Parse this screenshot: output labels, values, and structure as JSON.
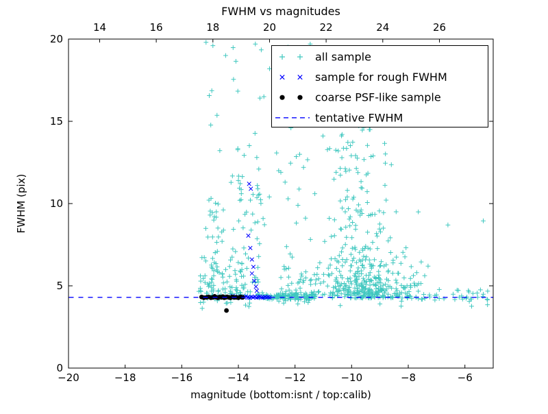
{
  "chart_data": {
    "type": "scatter",
    "title": "FWHM vs magnitudes",
    "xlabel": "magnitude (bottom:isnt / top:calib)",
    "ylabel": "FWHM (pix)",
    "xlim": [
      -20,
      -5
    ],
    "ylim": [
      0,
      20
    ],
    "grid": false,
    "x_ticks_bottom": [
      -20,
      -18,
      -16,
      -14,
      -12,
      -10,
      -8,
      -6
    ],
    "y_ticks": [
      0,
      5,
      10,
      15,
      20
    ],
    "top_axis": {
      "offset": 32.9,
      "ticks": [
        14,
        16,
        18,
        20,
        22,
        24,
        26
      ]
    },
    "tentative_fwhm": 4.3,
    "legend_position": "upper right",
    "colors": {
      "all_sample": "#3fc7bf",
      "rough_sample": "#0000ff",
      "psf_sample": "#000000",
      "tentative_line": "#0000ff",
      "frame": "#000000"
    },
    "series": [
      {
        "name": "all sample",
        "marker": "plus",
        "color": "#3fc7bf",
        "seed": 1337,
        "points": [
          [
            -15.0,
            9.3
          ],
          [
            -14.92,
            9.45
          ],
          [
            -14.85,
            9.2
          ],
          [
            -14.78,
            9.5
          ],
          [
            -14.0,
            11.4
          ],
          [
            -13.9,
            10.85
          ],
          [
            -13.95,
            10.2
          ],
          [
            -13.35,
            12.8
          ],
          [
            -13.28,
            12.1
          ],
          [
            -14.9,
            19.6
          ],
          [
            -14.45,
            19.0
          ],
          [
            -13.4,
            19.7
          ],
          [
            -12.9,
            18.2
          ],
          [
            -13.1,
            16.5
          ],
          [
            -12.5,
            11.9
          ],
          [
            -12.35,
            11.3
          ],
          [
            -11.7,
            12.2
          ],
          [
            -11.3,
            10.6
          ],
          [
            -9.55,
            16.9
          ],
          [
            -9.9,
            15.3
          ],
          [
            -9.35,
            14.5
          ],
          [
            -10.6,
            17.4
          ],
          [
            -6.6,
            8.7
          ],
          [
            -5.35,
            8.95
          ],
          [
            -5.2,
            4.15
          ],
          [
            -5.55,
            4.3
          ],
          [
            -7.3,
            6.2
          ],
          [
            -7.0,
            4.45
          ],
          [
            -6.2,
            4.3
          ],
          [
            -5.8,
            4.2
          ],
          [
            -5.2,
            3.85
          ],
          [
            -12.4,
            3.95
          ],
          [
            -11.9,
            3.9
          ],
          [
            -10.4,
            3.8
          ],
          [
            -9.0,
            3.9
          ]
        ],
        "clusters": [
          {
            "n": 130,
            "x": {
              "dist": "uniform",
              "a": -13.35,
              "b": -11.25
            },
            "y": {
              "dist": "normal",
              "mean": 4.33,
              "sd": 0.12
            }
          },
          {
            "n": 360,
            "x": {
              "dist": "normal",
              "mean": -9.5,
              "sd": 0.8
            },
            "y": {
              "dist": "exp",
              "base": 4.25,
              "scale": 1.15,
              "max": 9.5
            }
          },
          {
            "n": 80,
            "x": {
              "dist": "normal",
              "mean": -9.9,
              "sd": 0.55
            },
            "y": {
              "dist": "uniform",
              "a": 8,
              "b": 15.5
            }
          },
          {
            "n": 65,
            "x": {
              "dist": "normal",
              "mean": -14.85,
              "sd": 0.22
            },
            "y": {
              "dist": "exp",
              "base": 4.4,
              "scale": 3.0,
              "max": 19.8
            }
          },
          {
            "n": 50,
            "x": {
              "dist": "normal",
              "mean": -13.95,
              "sd": 0.18
            },
            "y": {
              "dist": "exp",
              "base": 4.4,
              "scale": 2.8,
              "max": 18.5
            }
          },
          {
            "n": 25,
            "x": {
              "dist": "normal",
              "mean": -13.38,
              "sd": 0.15
            },
            "y": {
              "dist": "uniform",
              "a": 4.6,
              "b": 11.5
            }
          },
          {
            "n": 40,
            "x": {
              "dist": "uniform",
              "a": -15.4,
              "b": -8.3
            },
            "y": {
              "dist": "uniform",
              "a": 9,
              "b": 19.8
            }
          },
          {
            "n": 45,
            "x": {
              "dist": "uniform",
              "a": -8.3,
              "b": -5.1
            },
            "y": {
              "dist": "normal",
              "mean": 4.35,
              "sd": 0.3
            }
          },
          {
            "n": 40,
            "x": {
              "dist": "uniform",
              "a": -15.45,
              "b": -13.35
            },
            "y": {
              "dist": "normal",
              "mean": 4.42,
              "sd": 0.28
            }
          },
          {
            "n": 55,
            "x": {
              "dist": "uniform",
              "a": -12.6,
              "b": -11.0
            },
            "y": {
              "dist": "exp",
              "base": 4.3,
              "scale": 1.6,
              "max": 12
            }
          }
        ]
      },
      {
        "name": "sample for rough FWHM",
        "marker": "x",
        "color": "#0000ff",
        "points": [
          [
            -14.2,
            4.38
          ],
          [
            -14.1,
            4.3
          ],
          [
            -14.02,
            4.34
          ],
          [
            -13.95,
            4.28
          ],
          [
            -13.88,
            4.32
          ],
          [
            -13.8,
            4.3
          ],
          [
            -13.73,
            4.36
          ],
          [
            -13.66,
            4.3
          ],
          [
            -13.6,
            4.27
          ],
          [
            -13.54,
            4.33
          ],
          [
            -13.48,
            4.3
          ],
          [
            -13.42,
            4.35
          ],
          [
            -13.36,
            4.28
          ],
          [
            -13.3,
            4.31
          ],
          [
            -13.24,
            4.34
          ],
          [
            -13.18,
            4.3
          ],
          [
            -13.12,
            4.28
          ],
          [
            -13.06,
            4.33
          ],
          [
            -13.0,
            4.3
          ],
          [
            -12.95,
            4.32
          ],
          [
            -12.9,
            4.29
          ],
          [
            -13.62,
            11.2
          ],
          [
            -13.56,
            10.9
          ],
          [
            -13.65,
            8.05
          ],
          [
            -13.58,
            7.3
          ],
          [
            -13.52,
            6.6
          ],
          [
            -13.47,
            6.15
          ],
          [
            -13.52,
            5.75
          ],
          [
            -13.44,
            5.3
          ],
          [
            -13.38,
            4.95
          ],
          [
            -13.35,
            4.7
          ]
        ]
      },
      {
        "name": "coarse PSF-like sample",
        "marker": "dot",
        "color": "#000000",
        "points": [
          [
            -15.3,
            4.32
          ],
          [
            -15.22,
            4.28
          ],
          [
            -15.12,
            4.3
          ],
          [
            -15.05,
            4.33
          ],
          [
            -14.97,
            4.28
          ],
          [
            -14.9,
            4.3
          ],
          [
            -14.84,
            4.36
          ],
          [
            -14.78,
            4.3
          ],
          [
            -14.72,
            4.27
          ],
          [
            -14.66,
            4.32
          ],
          [
            -14.6,
            4.3
          ],
          [
            -14.55,
            4.34
          ],
          [
            -14.5,
            4.28
          ],
          [
            -14.45,
            4.3
          ],
          [
            -14.4,
            4.33
          ],
          [
            -14.34,
            4.3
          ],
          [
            -14.28,
            4.27
          ],
          [
            -14.22,
            4.32
          ],
          [
            -14.15,
            4.3
          ],
          [
            -14.08,
            4.3
          ],
          [
            -14.0,
            4.28
          ],
          [
            -13.92,
            4.33
          ],
          [
            -13.85,
            4.3
          ],
          [
            -14.42,
            3.5
          ]
        ]
      },
      {
        "name": "tentative FWHM",
        "type": "hline",
        "style": "dashed",
        "color": "#0000ff",
        "y": 4.3
      }
    ]
  }
}
